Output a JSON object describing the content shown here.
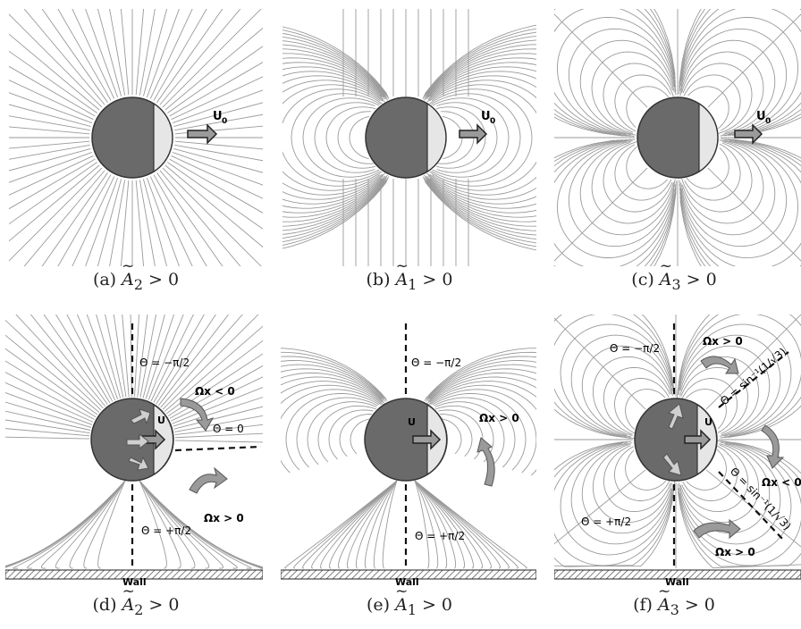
{
  "panels": [
    {
      "id": "a",
      "caption_prefix": "(a)",
      "symbol": "A",
      "sub": "2",
      "relation": "> 0",
      "velocity_label": "U",
      "velocity_sub": "0"
    },
    {
      "id": "b",
      "caption_prefix": "(b)",
      "symbol": "A",
      "sub": "1",
      "relation": "> 0",
      "velocity_label": "U",
      "velocity_sub": "0"
    },
    {
      "id": "c",
      "caption_prefix": "(c)",
      "symbol": "A",
      "sub": "3",
      "relation": "> 0",
      "velocity_label": "U",
      "velocity_sub": "0"
    },
    {
      "id": "d",
      "caption_prefix": "(d)",
      "symbol": "A",
      "sub": "2",
      "relation": "> 0",
      "velocity_label": "U",
      "wall": "Wall",
      "theta_top": "Θ = −π/2",
      "theta_bottom": "Θ = +π/2",
      "theta_zero": "Θ = 0",
      "omega_top": "Ωx < 0",
      "omega_bottom": "Ωx > 0"
    },
    {
      "id": "e",
      "caption_prefix": "(e)",
      "symbol": "A",
      "sub": "1",
      "relation": "> 0",
      "velocity_label": "U",
      "wall": "Wall",
      "theta_top": "Θ = −π/2",
      "theta_bottom": "Θ = +π/2",
      "omega_right": "Ωx > 0"
    },
    {
      "id": "f",
      "caption_prefix": "(f)",
      "symbol": "A",
      "sub": "3",
      "relation": "> 0",
      "velocity_label": "U",
      "wall": "Wall",
      "theta_top": "Θ = −π/2",
      "theta_bottom": "Θ = +π/2",
      "theta_upper_diag": "Θ = sin⁻¹(1/√3)",
      "theta_lower_diag": "Θ = sin⁻¹(1/√3)",
      "omega_top": "Ωx > 0",
      "omega_right": "Ωx < 0",
      "omega_bottom": "Ωx > 0"
    }
  ],
  "colors": {
    "sphere_dark": "#6a6a6a",
    "sphere_light": "#e6e6e6",
    "streamline": "#9a9a9a",
    "arrow_fill": "#9a9a9a",
    "wall_hatch": "#555555"
  }
}
